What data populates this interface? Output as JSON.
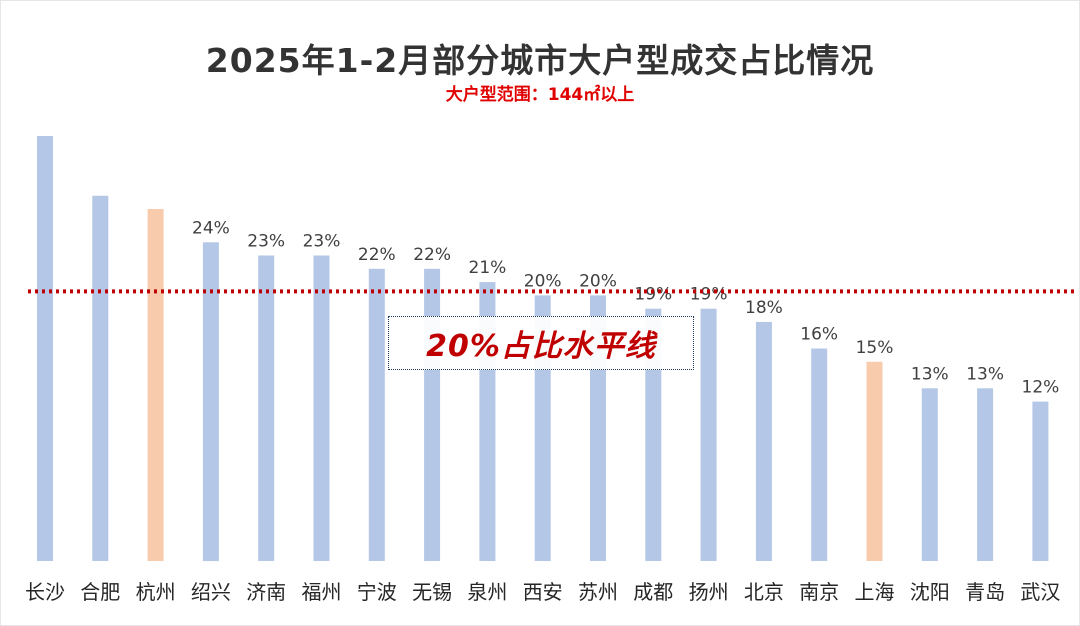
{
  "title": "2025年1-2月部分城市大户型成交占比情况",
  "subtitle": "大户型范围：144㎡以上",
  "reference_label": "20%占比水平线",
  "colors": {
    "bar": "#b4c7e7",
    "highlight": "#f8cbad",
    "reference_line": "#c00000",
    "label": "#404040",
    "axis_text": "#262626"
  },
  "chart_data": {
    "type": "bar",
    "categories": [
      "长沙",
      "合肥",
      "杭州",
      "绍兴",
      "济南",
      "福州",
      "宁波",
      "无锡",
      "泉州",
      "西安",
      "苏州",
      "成都",
      "扬州",
      "北京",
      "南京",
      "上海",
      "沈阳",
      "青岛",
      "武汉"
    ],
    "values": [
      32,
      27.5,
      26.5,
      24,
      23,
      23,
      22,
      22,
      21,
      20,
      20,
      19,
      19,
      18,
      16,
      15,
      13,
      13,
      12
    ],
    "labels": [
      "",
      "",
      "",
      "24%",
      "23%",
      "23%",
      "22%",
      "22%",
      "21%",
      "20%",
      "20%",
      "19%",
      "19%",
      "18%",
      "16%",
      "15%",
      "13%",
      "13%",
      "12%"
    ],
    "highlight": [
      "杭州",
      "上海"
    ],
    "reference_value": 20,
    "unit": "%",
    "ylim": [
      0,
      32
    ]
  }
}
